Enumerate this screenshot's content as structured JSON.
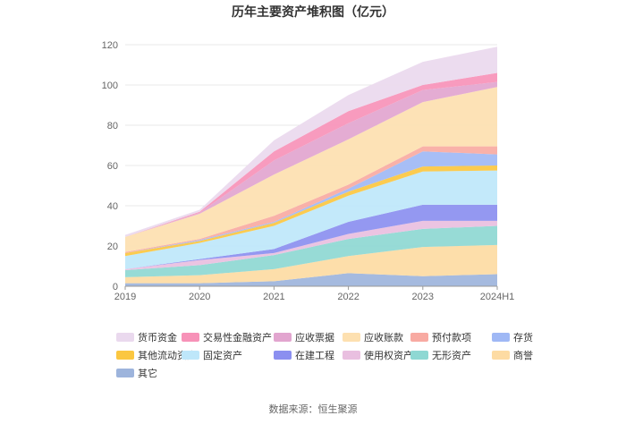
{
  "chart_data": {
    "type": "area",
    "stacked": true,
    "title": "历年主要资产堆积图（亿元）",
    "categories": [
      "2019",
      "2020",
      "2021",
      "2022",
      "2023",
      "2024H1"
    ],
    "ylim": [
      0,
      120
    ],
    "yticks": [
      0,
      20,
      40,
      60,
      80,
      100,
      120
    ],
    "grid": true,
    "legend_position": "bottom",
    "series": [
      {
        "name": "其它",
        "color": "#9db4dc",
        "values": [
          1.5,
          1.5,
          2.5,
          6.5,
          5.0,
          6.0
        ]
      },
      {
        "name": "商誉",
        "color": "#fddba3",
        "values": [
          3.0,
          4.0,
          6.0,
          8.5,
          14.5,
          14.5
        ]
      },
      {
        "name": "无形资产",
        "color": "#8ed8d3",
        "values": [
          3.5,
          5.0,
          7.0,
          8.5,
          9.0,
          9.5
        ]
      },
      {
        "name": "使用权资产",
        "color": "#e9bfe0",
        "values": [
          0.5,
          2.5,
          1.0,
          2.5,
          4.0,
          2.5
        ]
      },
      {
        "name": "在建工程",
        "color": "#8b8ff0",
        "values": [
          0.0,
          0.5,
          2.0,
          6.0,
          8.0,
          8.0
        ]
      },
      {
        "name": "固定资产",
        "color": "#bee7fa",
        "values": [
          6.5,
          8.0,
          11.5,
          13.0,
          16.5,
          17.0
        ]
      },
      {
        "name": "其他流动资产",
        "color": "#fbc741",
        "values": [
          1.5,
          1.0,
          1.5,
          2.0,
          2.5,
          2.5
        ]
      },
      {
        "name": "存货",
        "color": "#9fb8f5",
        "values": [
          0.0,
          0.5,
          0.5,
          1.5,
          7.5,
          5.5
        ]
      },
      {
        "name": "预付款项",
        "color": "#f8aaa2",
        "values": [
          0.5,
          0.5,
          3.0,
          2.0,
          2.5,
          4.0
        ]
      },
      {
        "name": "应收账款",
        "color": "#fde0b0",
        "values": [
          7.5,
          12.5,
          20.5,
          22.5,
          22.0,
          29.5
        ]
      },
      {
        "name": "应收票据",
        "color": "#e2a5cf",
        "values": [
          0.0,
          0.5,
          7.0,
          8.0,
          6.0,
          2.5
        ]
      },
      {
        "name": "交易性金融资产",
        "color": "#f792b8",
        "values": [
          0.0,
          0.5,
          4.5,
          6.0,
          2.5,
          4.5
        ]
      },
      {
        "name": "货币资金",
        "color": "#ead9ee",
        "values": [
          1.0,
          1.0,
          5.5,
          8.0,
          11.5,
          13.0
        ]
      }
    ]
  },
  "footer": {
    "source": "数据来源：恒生聚源"
  }
}
